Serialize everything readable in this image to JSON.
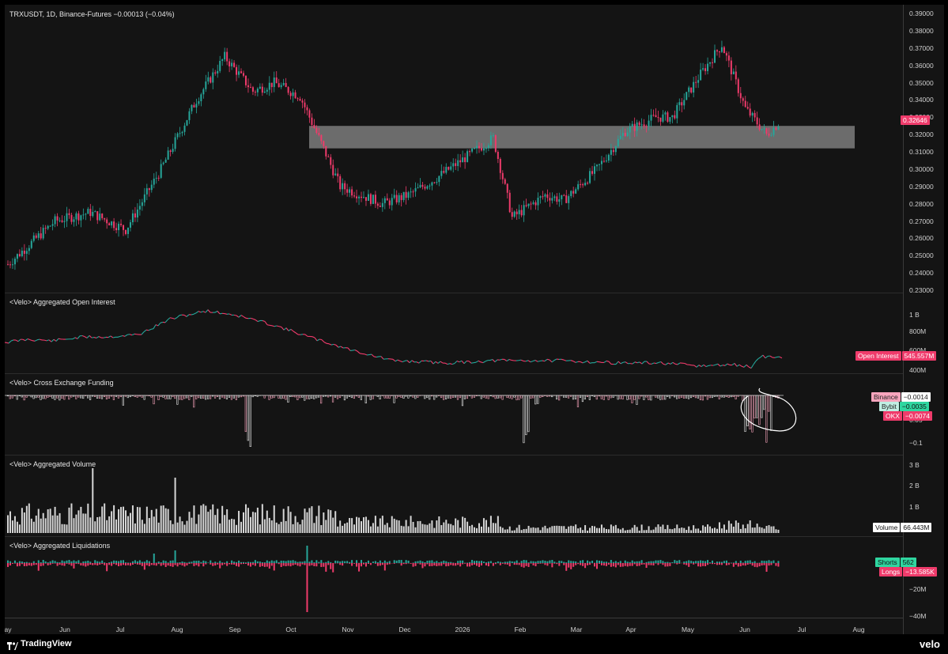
{
  "symbol_header": "TRXUSDT, 1D, Binance-Futures  −0.00013 (−0.04%)",
  "panes": {
    "oi_title": "<Velo> Aggregated Open Interest",
    "funding_title": "<Velo> Cross Exchange Funding",
    "volume_title": "<Velo> Aggregated Volume",
    "liq_title": "<Velo> Aggregated Liquidations"
  },
  "price_axis": [
    "0.39000",
    "0.38000",
    "0.37000",
    "0.36000",
    "0.35000",
    "0.34000",
    "0.33000",
    "0.32000",
    "0.31000",
    "0.30000",
    "0.29000",
    "0.28000",
    "0.27000",
    "0.26000",
    "0.25000",
    "0.24000",
    "0.23000"
  ],
  "price_tag": "0.32646",
  "oi_axis": [
    "1 B",
    "800M",
    "600M",
    "400M"
  ],
  "oi_tag_label": "Open Interest",
  "oi_tag_value": "545.557M",
  "funding_axis": [
    "0.05",
    "−0.1"
  ],
  "funding_tags": [
    {
      "label": "Binance",
      "value": "−0.0014"
    },
    {
      "label": "Bybit",
      "value": "−0.0035"
    },
    {
      "label": "OKX",
      "value": "−0.0074"
    }
  ],
  "volume_axis": [
    "3 B",
    "2 B",
    "1 B"
  ],
  "volume_tag_label": "Volume",
  "volume_tag_value": "66.443M",
  "liq_axis": [
    "−20M",
    "−40M"
  ],
  "liq_tags": [
    {
      "label": "Shorts",
      "value": "562"
    },
    {
      "label": "Longs",
      "value": "−13.585K"
    }
  ],
  "x_axis": [
    "ay",
    "Jun",
    "Jul",
    "Aug",
    "Sep",
    "Oct",
    "Nov",
    "Dec",
    "2026",
    "Feb",
    "Mar",
    "Apr",
    "May",
    "Jun",
    "Jul",
    "Aug"
  ],
  "footer": {
    "brand": "TradingView",
    "right_brand": "velo"
  },
  "colors": {
    "up": "#26a69a",
    "down": "#ef3b6b",
    "zone": "#8a8a8a",
    "bg": "#141414"
  },
  "chart_data": {
    "type": "candlestick",
    "title": "TRXUSDT, 1D, Binance-Futures",
    "ylim": [
      0.23,
      0.39
    ],
    "close_path": [
      [
        "May",
        0.245
      ],
      [
        "Jun",
        0.27
      ],
      [
        "Jun mid",
        0.275
      ],
      [
        "Jul",
        0.265
      ],
      [
        "Jul mid",
        0.3
      ],
      [
        "Aug",
        0.34
      ],
      [
        "Aug mid",
        0.365
      ],
      [
        "Sep",
        0.345
      ],
      [
        "Sep mid",
        0.35
      ],
      [
        "Oct",
        0.342
      ],
      [
        "Oct mid",
        0.318
      ],
      [
        "Nov",
        0.29
      ],
      [
        "Nov mid",
        0.285
      ],
      [
        "Dec",
        0.28
      ],
      [
        "Dec mid",
        0.285
      ],
      [
        "2026",
        0.295
      ],
      [
        "Jan mid",
        0.318
      ],
      [
        "Feb",
        0.272
      ],
      [
        "Feb mid",
        0.285
      ],
      [
        "Mar",
        0.282
      ],
      [
        "Mar mid",
        0.3
      ],
      [
        "Apr",
        0.322
      ],
      [
        "Apr mid",
        0.33
      ],
      [
        "May",
        0.33
      ],
      [
        "May mid",
        0.355
      ],
      [
        "Jun",
        0.372
      ],
      [
        "Jun early",
        0.335
      ],
      [
        "Jun mid",
        0.32
      ],
      [
        "last",
        0.32646
      ]
    ],
    "resistance_zone": [
      0.312,
      0.325
    ],
    "last_price": 0.32646,
    "indicators": {
      "open_interest_last": "545.557M",
      "funding_last": {
        "Binance": -0.0014,
        "Bybit": -0.0035,
        "OKX": -0.0074
      },
      "volume_last": "66.443M",
      "liquidations_last": {
        "Shorts": 562,
        "Longs": -13585
      }
    }
  }
}
